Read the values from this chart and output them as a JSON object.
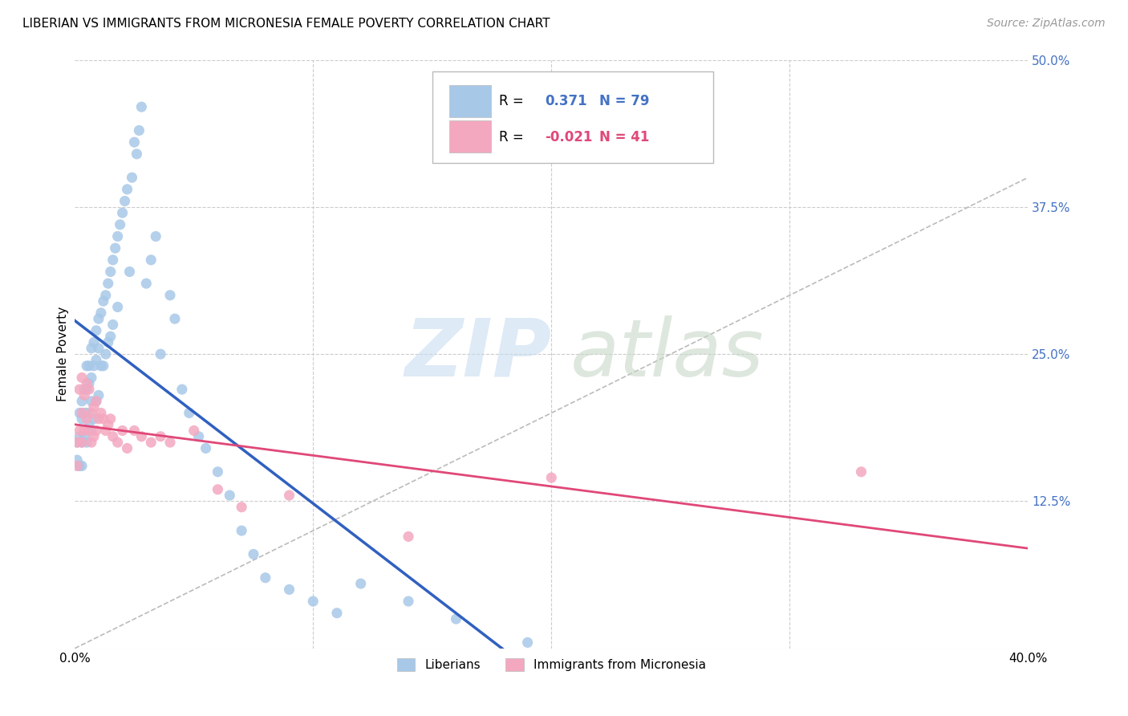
{
  "title": "LIBERIAN VS IMMIGRANTS FROM MICRONESIA FEMALE POVERTY CORRELATION CHART",
  "source": "Source: ZipAtlas.com",
  "ylabel": "Female Poverty",
  "xlim": [
    0.0,
    0.4
  ],
  "ylim": [
    0.0,
    0.5
  ],
  "yticks": [
    0.0,
    0.125,
    0.25,
    0.375,
    0.5
  ],
  "ytick_labels": [
    "",
    "12.5%",
    "25.0%",
    "37.5%",
    "50.0%"
  ],
  "xtick_labels": [
    "0.0%",
    "40.0%"
  ],
  "R_liberian": 0.371,
  "N_liberian": 79,
  "R_micronesia": -0.021,
  "N_micronesia": 41,
  "color_liberian": "#a8c8e8",
  "color_micronesia": "#f4a8c0",
  "color_liberian_line": "#3060c0",
  "color_micronesia_line": "#e04878",
  "legend_label_1": "Liberians",
  "legend_label_2": "Immigrants from Micronesia",
  "lib_x": [
    0.001,
    0.001,
    0.002,
    0.002,
    0.002,
    0.003,
    0.003,
    0.003,
    0.003,
    0.004,
    0.004,
    0.004,
    0.005,
    0.005,
    0.005,
    0.005,
    0.006,
    0.006,
    0.006,
    0.007,
    0.007,
    0.007,
    0.007,
    0.008,
    0.008,
    0.008,
    0.009,
    0.009,
    0.009,
    0.01,
    0.01,
    0.01,
    0.011,
    0.011,
    0.012,
    0.012,
    0.013,
    0.013,
    0.014,
    0.014,
    0.015,
    0.015,
    0.016,
    0.016,
    0.017,
    0.018,
    0.018,
    0.019,
    0.02,
    0.021,
    0.022,
    0.023,
    0.024,
    0.025,
    0.026,
    0.027,
    0.028,
    0.03,
    0.032,
    0.034,
    0.036,
    0.04,
    0.042,
    0.045,
    0.048,
    0.052,
    0.055,
    0.06,
    0.065,
    0.07,
    0.075,
    0.08,
    0.09,
    0.1,
    0.11,
    0.12,
    0.14,
    0.16,
    0.19
  ],
  "lib_y": [
    0.175,
    0.16,
    0.2,
    0.18,
    0.155,
    0.21,
    0.195,
    0.175,
    0.155,
    0.22,
    0.2,
    0.18,
    0.24,
    0.22,
    0.2,
    0.175,
    0.24,
    0.225,
    0.19,
    0.255,
    0.23,
    0.21,
    0.185,
    0.26,
    0.24,
    0.195,
    0.27,
    0.245,
    0.21,
    0.28,
    0.255,
    0.215,
    0.285,
    0.24,
    0.295,
    0.24,
    0.3,
    0.25,
    0.31,
    0.26,
    0.32,
    0.265,
    0.33,
    0.275,
    0.34,
    0.35,
    0.29,
    0.36,
    0.37,
    0.38,
    0.39,
    0.32,
    0.4,
    0.43,
    0.42,
    0.44,
    0.46,
    0.31,
    0.33,
    0.35,
    0.25,
    0.3,
    0.28,
    0.22,
    0.2,
    0.18,
    0.17,
    0.15,
    0.13,
    0.1,
    0.08,
    0.06,
    0.05,
    0.04,
    0.03,
    0.055,
    0.04,
    0.025,
    0.005
  ],
  "mic_x": [
    0.001,
    0.001,
    0.002,
    0.002,
    0.003,
    0.003,
    0.003,
    0.004,
    0.004,
    0.005,
    0.005,
    0.006,
    0.006,
    0.007,
    0.007,
    0.008,
    0.008,
    0.009,
    0.009,
    0.01,
    0.011,
    0.012,
    0.013,
    0.014,
    0.015,
    0.016,
    0.018,
    0.02,
    0.022,
    0.025,
    0.028,
    0.032,
    0.036,
    0.04,
    0.05,
    0.06,
    0.07,
    0.09,
    0.14,
    0.2,
    0.33
  ],
  "mic_y": [
    0.175,
    0.155,
    0.22,
    0.185,
    0.23,
    0.2,
    0.175,
    0.215,
    0.185,
    0.225,
    0.195,
    0.22,
    0.185,
    0.2,
    0.175,
    0.205,
    0.18,
    0.21,
    0.185,
    0.195,
    0.2,
    0.195,
    0.185,
    0.19,
    0.195,
    0.18,
    0.175,
    0.185,
    0.17,
    0.185,
    0.18,
    0.175,
    0.18,
    0.175,
    0.185,
    0.135,
    0.12,
    0.13,
    0.095,
    0.145,
    0.15
  ]
}
